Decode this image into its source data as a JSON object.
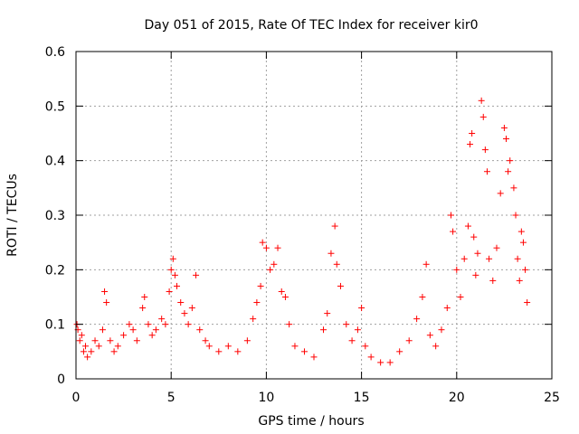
{
  "chart_data": {
    "type": "scatter",
    "title": "Day 051 of 2015, Rate Of TEC Index for receiver kir0",
    "xlabel": "GPS time / hours",
    "ylabel": "ROTI / TECUs",
    "xlim": [
      0,
      25
    ],
    "ylim": [
      0,
      0.6
    ],
    "grid": true,
    "marker": "+",
    "color": "#ff0000",
    "x_ticks": [
      0,
      5,
      10,
      15,
      20,
      25
    ],
    "x_tick_labels": [
      "0",
      "5",
      "10",
      "15",
      "20",
      "25"
    ],
    "y_ticks": [
      0,
      0.1,
      0.2,
      0.3,
      0.4,
      0.5,
      0.6
    ],
    "y_tick_labels": [
      "0",
      "0.1",
      "0.2",
      "0.3",
      "0.4",
      "0.5",
      "0.6"
    ],
    "series": [
      {
        "name": "ROTI",
        "points": [
          [
            0.05,
            0.1
          ],
          [
            0.1,
            0.09
          ],
          [
            0.2,
            0.07
          ],
          [
            0.3,
            0.08
          ],
          [
            0.4,
            0.05
          ],
          [
            0.5,
            0.06
          ],
          [
            0.6,
            0.04
          ],
          [
            0.8,
            0.05
          ],
          [
            1.0,
            0.07
          ],
          [
            1.2,
            0.06
          ],
          [
            1.4,
            0.09
          ],
          [
            1.5,
            0.16
          ],
          [
            1.6,
            0.14
          ],
          [
            1.8,
            0.07
          ],
          [
            2.0,
            0.05
          ],
          [
            2.2,
            0.06
          ],
          [
            2.5,
            0.08
          ],
          [
            2.8,
            0.1
          ],
          [
            3.0,
            0.09
          ],
          [
            3.2,
            0.07
          ],
          [
            3.5,
            0.13
          ],
          [
            3.6,
            0.15
          ],
          [
            3.8,
            0.1
          ],
          [
            4.0,
            0.08
          ],
          [
            4.2,
            0.09
          ],
          [
            4.5,
            0.11
          ],
          [
            4.7,
            0.1
          ],
          [
            4.9,
            0.16
          ],
          [
            5.0,
            0.2
          ],
          [
            5.1,
            0.22
          ],
          [
            5.2,
            0.19
          ],
          [
            5.3,
            0.17
          ],
          [
            5.5,
            0.14
          ],
          [
            5.7,
            0.12
          ],
          [
            5.9,
            0.1
          ],
          [
            6.1,
            0.13
          ],
          [
            6.3,
            0.19
          ],
          [
            6.5,
            0.09
          ],
          [
            6.8,
            0.07
          ],
          [
            7.0,
            0.06
          ],
          [
            7.5,
            0.05
          ],
          [
            8.0,
            0.06
          ],
          [
            8.5,
            0.05
          ],
          [
            9.0,
            0.07
          ],
          [
            9.3,
            0.11
          ],
          [
            9.5,
            0.14
          ],
          [
            9.7,
            0.17
          ],
          [
            9.8,
            0.25
          ],
          [
            10.0,
            0.24
          ],
          [
            10.2,
            0.2
          ],
          [
            10.4,
            0.21
          ],
          [
            10.6,
            0.24
          ],
          [
            10.8,
            0.16
          ],
          [
            11.0,
            0.15
          ],
          [
            11.2,
            0.1
          ],
          [
            11.5,
            0.06
          ],
          [
            12.0,
            0.05
          ],
          [
            12.5,
            0.04
          ],
          [
            13.0,
            0.09
          ],
          [
            13.2,
            0.12
          ],
          [
            13.4,
            0.23
          ],
          [
            13.6,
            0.28
          ],
          [
            13.7,
            0.21
          ],
          [
            13.9,
            0.17
          ],
          [
            14.2,
            0.1
          ],
          [
            14.5,
            0.07
          ],
          [
            14.8,
            0.09
          ],
          [
            15.0,
            0.13
          ],
          [
            15.2,
            0.06
          ],
          [
            15.5,
            0.04
          ],
          [
            16.0,
            0.03
          ],
          [
            16.5,
            0.03
          ],
          [
            17.0,
            0.05
          ],
          [
            17.5,
            0.07
          ],
          [
            17.9,
            0.11
          ],
          [
            18.2,
            0.15
          ],
          [
            18.4,
            0.21
          ],
          [
            18.6,
            0.08
          ],
          [
            18.9,
            0.06
          ],
          [
            19.2,
            0.09
          ],
          [
            19.5,
            0.13
          ],
          [
            19.7,
            0.3
          ],
          [
            19.8,
            0.27
          ],
          [
            20.0,
            0.2
          ],
          [
            20.2,
            0.15
          ],
          [
            20.4,
            0.22
          ],
          [
            20.6,
            0.28
          ],
          [
            20.7,
            0.43
          ],
          [
            20.8,
            0.45
          ],
          [
            20.9,
            0.26
          ],
          [
            21.0,
            0.19
          ],
          [
            21.1,
            0.23
          ],
          [
            21.3,
            0.51
          ],
          [
            21.4,
            0.48
          ],
          [
            21.5,
            0.42
          ],
          [
            21.6,
            0.38
          ],
          [
            21.7,
            0.22
          ],
          [
            21.9,
            0.18
          ],
          [
            22.1,
            0.24
          ],
          [
            22.3,
            0.34
          ],
          [
            22.5,
            0.46
          ],
          [
            22.6,
            0.44
          ],
          [
            22.7,
            0.38
          ],
          [
            22.8,
            0.4
          ],
          [
            23.0,
            0.35
          ],
          [
            23.1,
            0.3
          ],
          [
            23.2,
            0.22
          ],
          [
            23.3,
            0.18
          ],
          [
            23.4,
            0.27
          ],
          [
            23.5,
            0.25
          ],
          [
            23.6,
            0.2
          ],
          [
            23.7,
            0.14
          ]
        ]
      }
    ]
  }
}
